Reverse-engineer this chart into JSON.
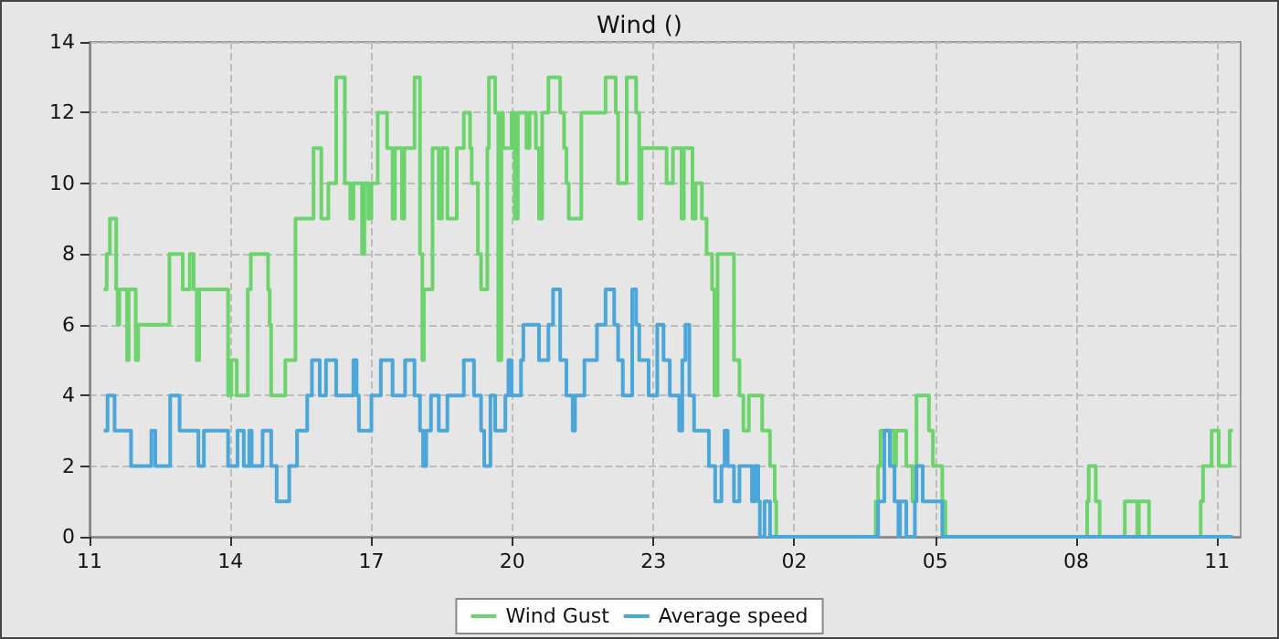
{
  "chart_data": {
    "type": "step",
    "title": "Wind ()",
    "xlim": [
      "--01-01T11:00",
      "--01-02T11:30"
    ],
    "ylim": [
      0,
      14
    ],
    "yticks": [
      0,
      2,
      4,
      6,
      8,
      10,
      12,
      14
    ],
    "xticks": [
      {
        "value": "--01-01T11:00",
        "label": "11"
      },
      {
        "value": "--01-01T14:00",
        "label": "14"
      },
      {
        "value": "--01-01T17:00",
        "label": "17"
      },
      {
        "value": "--01-01T20:00",
        "label": "20"
      },
      {
        "value": "--01-01T23:00",
        "label": "23"
      },
      {
        "value": "--01-02T02:00",
        "label": "02"
      },
      {
        "value": "--01-02T05:00",
        "label": "05"
      },
      {
        "value": "--01-02T08:00",
        "label": "08"
      },
      {
        "value": "--01-02T11:00",
        "label": "11"
      }
    ],
    "grid": true,
    "legend": "bottom",
    "series": [
      {
        "name": "Wind Gust",
        "color": "#6dd46d",
        "x": [
          "--01-01T11:18",
          "--01-01T11:22",
          "--01-01T11:26",
          "--01-01T11:34",
          "--01-01T11:36",
          "--01-01T11:38",
          "--01-01T11:48",
          "--01-01T11:50",
          "--01-01T11:59",
          "--01-01T12:02",
          "--01-01T12:42",
          "--01-01T12:59",
          "--01-01T13:08",
          "--01-01T13:13",
          "--01-01T13:17",
          "--01-01T13:20",
          "--01-01T13:57",
          "--01-01T14:01",
          "--01-01T14:08",
          "--01-01T14:22",
          "--01-01T14:26",
          "--01-01T14:48",
          "--01-01T14:50",
          "--01-01T14:52",
          "--01-01T15:10",
          "--01-01T15:23",
          "--01-01T15:46",
          "--01-01T15:56",
          "--01-01T16:05",
          "--01-01T16:15",
          "--01-01T16:26",
          "--01-01T16:33",
          "--01-01T16:37",
          "--01-01T16:48",
          "--01-01T16:51",
          "--01-01T16:56",
          "--01-01T17:00",
          "--01-01T17:08",
          "--01-01T17:20",
          "--01-01T17:27",
          "--01-01T17:30",
          "--01-01T17:39",
          "--01-01T17:42",
          "--01-01T17:55",
          "--01-01T18:02",
          "--01-01T18:05",
          "--01-01T18:07",
          "--01-01T18:18",
          "--01-01T18:26",
          "--01-01T18:30",
          "--01-01T18:37",
          "--01-01T18:49",
          "--01-01T18:58",
          "--01-01T19:06",
          "--01-01T19:08",
          "--01-01T19:16",
          "--01-01T19:20",
          "--01-01T19:28",
          "--01-01T19:30",
          "--01-01T19:38",
          "--01-01T19:42",
          "--01-01T19:46",
          "--01-01T19:48",
          "--01-01T19:59",
          "--01-01T20:03",
          "--01-01T20:07",
          "--01-01T20:18",
          "--01-01T20:22",
          "--01-01T20:30",
          "--01-01T20:34",
          "--01-01T20:38",
          "--01-01T20:46",
          "--01-01T21:01",
          "--01-01T21:06",
          "--01-01T21:09",
          "--01-01T21:12",
          "--01-01T21:28",
          "--01-01T21:59",
          "--01-01T22:12",
          "--01-01T22:15",
          "--01-01T22:26",
          "--01-01T22:38",
          "--01-01T22:42",
          "--01-01T22:45",
          "--01-01T23:17",
          "--01-01T23:25",
          "--01-01T23:36",
          "--01-01T23:39",
          "--01-01T23:50",
          "--01-01T23:54",
          "--01-02T00:02",
          "--01-02T00:08",
          "--01-02T00:15",
          "--01-02T00:18",
          "--01-02T00:22",
          "--01-02T00:43",
          "--01-02T00:50",
          "--01-02T00:55",
          "--01-02T01:02",
          "--01-02T01:19",
          "--01-02T01:29",
          "--01-02T01:35",
          "--01-02T01:37",
          "--01-02T03:44",
          "--01-02T03:47",
          "--01-02T03:50",
          "--01-02T04:07",
          "--01-02T04:10",
          "--01-02T04:23",
          "--01-02T04:31",
          "--01-02T04:36",
          "--01-02T04:52",
          "--01-02T04:57",
          "--01-02T05:09",
          "--01-02T05:13",
          "--01-02T08:14",
          "--01-02T08:16",
          "--01-02T08:25",
          "--01-02T08:30",
          "--01-02T09:02",
          "--01-02T09:18",
          "--01-02T09:20",
          "--01-02T09:33",
          "--01-02T10:39",
          "--01-02T10:42",
          "--01-02T10:53",
          "--01-02T11:02",
          "--01-02T11:16",
          "--01-02T11:20"
        ],
        "values": [
          7,
          8,
          9,
          7,
          6,
          7,
          5,
          7,
          5,
          6,
          8,
          7,
          8,
          7,
          5,
          7,
          4,
          5,
          4,
          7,
          8,
          7,
          6,
          4,
          5,
          9,
          11,
          9,
          10,
          13,
          10,
          9,
          10,
          8,
          10,
          9,
          10,
          12,
          11,
          9,
          11,
          9,
          11,
          13,
          8,
          5,
          7,
          11,
          9,
          11,
          9,
          11,
          12,
          11,
          10,
          8,
          7,
          11,
          13,
          12,
          5,
          12,
          11,
          12,
          9,
          12,
          11,
          12,
          11,
          9,
          12,
          13,
          12,
          11,
          10,
          9,
          12,
          13,
          12,
          10,
          13,
          12,
          9,
          11,
          10,
          11,
          9,
          11,
          9,
          10,
          9,
          8,
          7,
          4,
          8,
          5,
          4,
          3,
          4,
          3,
          2,
          1,
          0,
          1,
          2,
          3,
          2,
          3,
          2,
          1,
          4,
          3,
          2,
          1,
          0,
          1,
          2,
          1,
          0,
          1,
          0,
          1,
          0,
          1,
          2,
          3,
          2,
          3,
          3
        ]
      },
      {
        "name": "Average speed",
        "color": "#4ba6d9",
        "x": [
          "--01-01T11:18",
          "--01-01T11:23",
          "--01-01T11:32",
          "--01-01T11:53",
          "--01-01T12:19",
          "--01-01T12:24",
          "--01-01T12:43",
          "--01-01T12:55",
          "--01-01T13:19",
          "--01-01T13:26",
          "--01-01T13:57",
          "--01-01T14:09",
          "--01-01T14:17",
          "--01-01T14:24",
          "--01-01T14:27",
          "--01-01T14:41",
          "--01-01T14:52",
          "--01-01T14:59",
          "--01-01T15:15",
          "--01-01T15:25",
          "--01-01T15:38",
          "--01-01T15:44",
          "--01-01T15:54",
          "--01-01T16:02",
          "--01-01T16:15",
          "--01-01T16:37",
          "--01-01T16:41",
          "--01-01T16:44",
          "--01-01T17:00",
          "--01-01T17:12",
          "--01-01T17:27",
          "--01-01T17:43",
          "--01-01T17:55",
          "--01-01T18:02",
          "--01-01T18:06",
          "--01-01T18:10",
          "--01-01T18:16",
          "--01-01T18:26",
          "--01-01T18:37",
          "--01-01T18:58",
          "--01-01T19:11",
          "--01-01T19:20",
          "--01-01T19:24",
          "--01-01T19:32",
          "--01-01T19:38",
          "--01-01T19:51",
          "--01-01T19:55",
          "--01-01T19:59",
          "--01-01T20:11",
          "--01-01T20:14",
          "--01-01T20:34",
          "--01-01T20:46",
          "--01-01T20:52",
          "--01-01T21:01",
          "--01-01T21:09",
          "--01-01T21:17",
          "--01-01T21:20",
          "--01-01T21:32",
          "--01-01T21:48",
          "--01-01T21:59",
          "--01-01T22:10",
          "--01-01T22:15",
          "--01-01T22:21",
          "--01-01T22:33",
          "--01-01T22:38",
          "--01-01T22:42",
          "--01-01T22:54",
          "--01-01T23:05",
          "--01-01T23:13",
          "--01-01T23:21",
          "--01-01T23:33",
          "--01-01T23:37",
          "--01-01T23:41",
          "--01-01T23:46",
          "--01-01T23:52",
          "--01-02T00:11",
          "--01-02T00:19",
          "--01-02T00:27",
          "--01-02T00:31",
          "--01-02T00:35",
          "--01-02T00:43",
          "--01-02T00:50",
          "--01-02T01:06",
          "--01-02T01:10",
          "--01-02T01:14",
          "--01-02T01:16",
          "--01-02T01:22",
          "--01-02T01:29",
          "--01-02T03:47",
          "--01-02T03:55",
          "--01-02T04:02",
          "--01-02T04:08",
          "--01-02T04:13",
          "--01-02T04:15",
          "--01-02T04:23",
          "--01-02T04:34",
          "--01-02T04:36",
          "--01-02T04:44",
          "--01-02T05:09",
          "--01-02T11:20"
        ],
        "values": [
          3,
          4,
          3,
          2,
          3,
          2,
          4,
          3,
          2,
          3,
          2,
          3,
          2,
          3,
          2,
          3,
          2,
          1,
          2,
          3,
          4,
          5,
          4,
          5,
          4,
          5,
          4,
          3,
          4,
          5,
          4,
          5,
          4,
          3,
          2,
          3,
          4,
          3,
          4,
          5,
          4,
          3,
          2,
          4,
          3,
          4,
          5,
          4,
          5,
          6,
          5,
          6,
          7,
          5,
          4,
          3,
          4,
          5,
          6,
          7,
          6,
          5,
          4,
          7,
          6,
          5,
          4,
          6,
          5,
          4,
          3,
          5,
          6,
          4,
          3,
          2,
          1,
          2,
          3,
          2,
          1,
          2,
          1,
          2,
          1,
          0,
          1,
          0,
          1,
          3,
          2,
          1,
          0,
          1,
          0,
          1,
          2,
          1,
          0,
          0
        ]
      }
    ]
  }
}
